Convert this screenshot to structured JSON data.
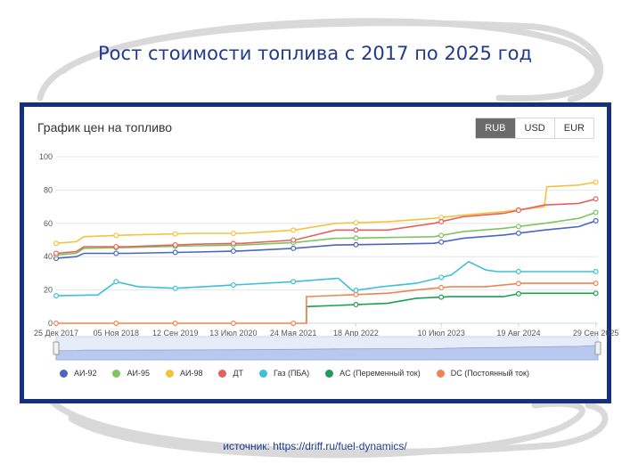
{
  "headline": "Рост стоимости топлива с 2017 по 2025 год",
  "source_text": "источник: https://driff.ru/fuel-dynamics/",
  "panel": {
    "title": "График цен на топливо",
    "currencies": [
      "RUB",
      "USD",
      "EUR"
    ],
    "active_currency": "RUB"
  },
  "colors": {
    "frame": "#16307e",
    "headline": "#1f3a8f"
  },
  "chart_data": {
    "type": "line",
    "title": "График цен на топливо",
    "ylim": [
      0,
      100
    ],
    "yticks": [
      0,
      20,
      40,
      60,
      80,
      100
    ],
    "xlim": [
      "2017-12-25",
      "2025-10-10"
    ],
    "xtick_labels": [
      "25 Дек 2017",
      "05 Ноя 2018",
      "12 Сен 2019",
      "13 Июл 2020",
      "24 Мая 2021",
      "18 Апр 2022",
      "10 Июл 2023",
      "19 Авг 2024",
      "29 Сен 2025"
    ],
    "xtick_dates": [
      "2017-12-25",
      "2018-11-05",
      "2019-09-12",
      "2020-07-13",
      "2021-05-24",
      "2022-04-18",
      "2023-07-10",
      "2024-08-19",
      "2025-09-29"
    ],
    "grid": "horizontal",
    "legend_position": "bottom",
    "series": [
      {
        "name": "АИ-92",
        "color": "#4a66c2",
        "points": [
          [
            "2017-12-25",
            39
          ],
          [
            "2018-04-10",
            40
          ],
          [
            "2018-05-20",
            42
          ],
          [
            "2019-01-01",
            42
          ],
          [
            "2020-01-01",
            42.8
          ],
          [
            "2020-09-01",
            43.5
          ],
          [
            "2021-06-01",
            45
          ],
          [
            "2022-01-01",
            47
          ],
          [
            "2022-10-01",
            47.5
          ],
          [
            "2023-06-01",
            48
          ],
          [
            "2023-11-01",
            51
          ],
          [
            "2024-06-01",
            53
          ],
          [
            "2025-01-01",
            56
          ],
          [
            "2025-07-01",
            58
          ],
          [
            "2025-10-10",
            62
          ]
        ],
        "markers": [
          "2017-12-25",
          "2018-11-05",
          "2019-09-12",
          "2020-07-13",
          "2021-05-24",
          "2022-04-18",
          "2023-07-10",
          "2024-08-19",
          "2025-09-29"
        ]
      },
      {
        "name": "АИ-95",
        "color": "#7cc55f",
        "points": [
          [
            "2017-12-25",
            41
          ],
          [
            "2018-04-10",
            42
          ],
          [
            "2018-05-20",
            45
          ],
          [
            "2019-01-01",
            45.5
          ],
          [
            "2020-01-01",
            46.5
          ],
          [
            "2020-09-01",
            47
          ],
          [
            "2021-06-01",
            48.5
          ],
          [
            "2022-01-01",
            51
          ],
          [
            "2022-10-01",
            51.5
          ],
          [
            "2023-06-01",
            52
          ],
          [
            "2023-11-01",
            55
          ],
          [
            "2024-06-01",
            57
          ],
          [
            "2025-01-01",
            60
          ],
          [
            "2025-07-01",
            63
          ],
          [
            "2025-10-10",
            67
          ]
        ],
        "markers": [
          "2017-12-25",
          "2018-11-05",
          "2019-09-12",
          "2020-07-13",
          "2021-05-24",
          "2022-04-18",
          "2023-07-10",
          "2024-08-19",
          "2025-09-29"
        ]
      },
      {
        "name": "АИ-98",
        "color": "#f3c33f",
        "points": [
          [
            "2017-12-25",
            48
          ],
          [
            "2018-04-10",
            49
          ],
          [
            "2018-05-20",
            52
          ],
          [
            "2019-01-01",
            53
          ],
          [
            "2020-01-01",
            54
          ],
          [
            "2020-09-01",
            54
          ],
          [
            "2021-06-01",
            56
          ],
          [
            "2022-01-01",
            60
          ],
          [
            "2022-10-01",
            61
          ],
          [
            "2023-06-01",
            63
          ],
          [
            "2023-11-01",
            65
          ],
          [
            "2024-06-01",
            67
          ],
          [
            "2025-01-01",
            70
          ],
          [
            "2025-01-15",
            82
          ],
          [
            "2025-07-01",
            83
          ],
          [
            "2025-10-10",
            85
          ]
        ],
        "markers": [
          "2017-12-25",
          "2018-11-05",
          "2019-09-12",
          "2020-07-13",
          "2021-05-24",
          "2022-04-18",
          "2023-07-10",
          "2024-08-19",
          "2025-09-29"
        ]
      },
      {
        "name": "ДТ",
        "color": "#e8605e",
        "points": [
          [
            "2017-12-25",
            42
          ],
          [
            "2018-04-10",
            43
          ],
          [
            "2018-05-20",
            46
          ],
          [
            "2019-01-01",
            46
          ],
          [
            "2020-01-01",
            47.5
          ],
          [
            "2020-09-01",
            48
          ],
          [
            "2021-06-01",
            50
          ],
          [
            "2022-01-01",
            56
          ],
          [
            "2022-10-01",
            56
          ],
          [
            "2023-06-01",
            60
          ],
          [
            "2023-11-01",
            64
          ],
          [
            "2024-06-01",
            66
          ],
          [
            "2025-01-01",
            71
          ],
          [
            "2025-07-01",
            72
          ],
          [
            "2025-10-10",
            75
          ]
        ],
        "markers": [
          "2017-12-25",
          "2018-11-05",
          "2019-09-12",
          "2020-07-13",
          "2021-05-24",
          "2022-04-18",
          "2023-07-10",
          "2024-08-19",
          "2025-09-29"
        ]
      },
      {
        "name": "Газ (ПБА)",
        "color": "#3ec0d6",
        "points": [
          [
            "2017-12-25",
            16.5
          ],
          [
            "2018-08-01",
            17
          ],
          [
            "2018-11-05",
            25
          ],
          [
            "2019-03-01",
            22
          ],
          [
            "2019-09-12",
            21
          ],
          [
            "2020-07-13",
            23
          ],
          [
            "2021-05-24",
            25
          ],
          [
            "2022-01-15",
            27
          ],
          [
            "2022-04-01",
            19.5
          ],
          [
            "2022-09-01",
            22
          ],
          [
            "2023-03-01",
            24
          ],
          [
            "2023-09-01",
            29
          ],
          [
            "2023-12-01",
            37
          ],
          [
            "2024-03-01",
            32
          ],
          [
            "2024-05-01",
            31
          ],
          [
            "2025-10-10",
            31
          ]
        ],
        "markers": [
          "2017-12-25",
          "2018-11-05",
          "2019-09-12",
          "2020-07-13",
          "2021-05-24",
          "2022-04-18",
          "2023-07-10",
          "2024-08-19",
          "2025-09-29"
        ]
      },
      {
        "name": "AC (Переменный ток)",
        "color": "#1e9e57",
        "points": [
          [
            "2021-08-01",
            0
          ],
          [
            "2021-08-01",
            10
          ],
          [
            "2022-10-01",
            12
          ],
          [
            "2023-03-01",
            15
          ],
          [
            "2023-09-01",
            16
          ],
          [
            "2024-06-01",
            16
          ],
          [
            "2024-09-01",
            18
          ],
          [
            "2025-10-10",
            18
          ]
        ],
        "markers": [
          "2022-04-18",
          "2023-07-10",
          "2024-08-19",
          "2025-09-29"
        ]
      },
      {
        "name": "DC (Постоянный ток)",
        "color": "#ef8451",
        "points": [
          [
            "2017-12-25",
            0
          ],
          [
            "2021-08-01",
            0
          ],
          [
            "2021-08-01",
            16
          ],
          [
            "2022-10-01",
            18
          ],
          [
            "2023-03-01",
            20
          ],
          [
            "2023-09-01",
            22
          ],
          [
            "2024-03-01",
            22
          ],
          [
            "2024-09-01",
            24
          ],
          [
            "2025-10-10",
            24
          ]
        ],
        "markers": [
          "2017-12-25",
          "2018-11-05",
          "2019-09-12",
          "2020-07-13",
          "2021-05-24",
          "2022-04-18",
          "2023-07-10",
          "2024-08-19",
          "2025-09-29"
        ]
      }
    ]
  }
}
